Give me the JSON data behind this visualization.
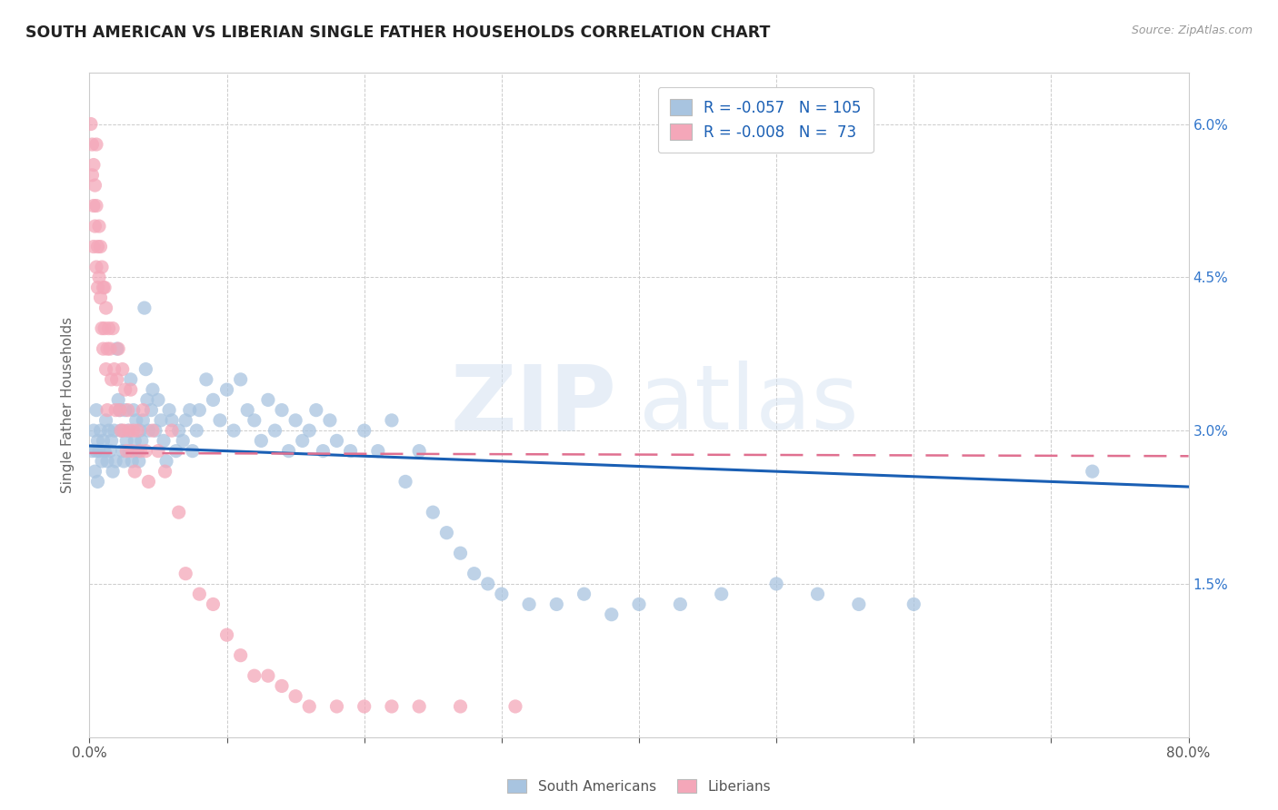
{
  "title": "SOUTH AMERICAN VS LIBERIAN SINGLE FATHER HOUSEHOLDS CORRELATION CHART",
  "source": "Source: ZipAtlas.com",
  "ylabel": "Single Father Households",
  "ytick_labels": [
    "1.5%",
    "3.0%",
    "4.5%",
    "6.0%"
  ],
  "ytick_values": [
    0.015,
    0.03,
    0.045,
    0.06
  ],
  "xlim": [
    0.0,
    0.8
  ],
  "ylim": [
    0.0,
    0.065
  ],
  "blue_R": "-0.057",
  "blue_N": "105",
  "pink_R": "-0.008",
  "pink_N": "73",
  "blue_color": "#a8c4e0",
  "pink_color": "#f4a7b9",
  "blue_line_color": "#1a5fb4",
  "pink_line_color": "#e07090",
  "legend_label_blue": "South Americans",
  "legend_label_pink": "Liberians",
  "background_color": "#ffffff",
  "grid_color": "#cccccc",
  "title_color": "#222222",
  "right_axis_color": "#3377cc",
  "watermark_text": "ZIPatlas",
  "blue_trend_x0": 0.0,
  "blue_trend_y0": 0.0285,
  "blue_trend_x1": 0.8,
  "blue_trend_y1": 0.0245,
  "pink_trend_x0": 0.0,
  "pink_trend_y0": 0.0278,
  "pink_trend_x1": 0.8,
  "pink_trend_y1": 0.0275,
  "blue_scatter_x": [
    0.002,
    0.003,
    0.004,
    0.005,
    0.005,
    0.006,
    0.006,
    0.007,
    0.008,
    0.009,
    0.01,
    0.011,
    0.012,
    0.013,
    0.014,
    0.015,
    0.016,
    0.017,
    0.018,
    0.019,
    0.02,
    0.021,
    0.022,
    0.023,
    0.024,
    0.025,
    0.026,
    0.027,
    0.028,
    0.029,
    0.03,
    0.031,
    0.032,
    0.033,
    0.034,
    0.035,
    0.036,
    0.037,
    0.038,
    0.039,
    0.04,
    0.041,
    0.042,
    0.043,
    0.045,
    0.046,
    0.048,
    0.05,
    0.052,
    0.054,
    0.056,
    0.058,
    0.06,
    0.063,
    0.065,
    0.068,
    0.07,
    0.073,
    0.075,
    0.078,
    0.08,
    0.085,
    0.09,
    0.095,
    0.1,
    0.105,
    0.11,
    0.115,
    0.12,
    0.125,
    0.13,
    0.135,
    0.14,
    0.145,
    0.15,
    0.155,
    0.16,
    0.165,
    0.17,
    0.175,
    0.18,
    0.19,
    0.2,
    0.21,
    0.22,
    0.23,
    0.24,
    0.25,
    0.26,
    0.27,
    0.28,
    0.29,
    0.3,
    0.32,
    0.34,
    0.36,
    0.38,
    0.4,
    0.43,
    0.46,
    0.5,
    0.53,
    0.56,
    0.6,
    0.73
  ],
  "blue_scatter_y": [
    0.028,
    0.03,
    0.026,
    0.028,
    0.032,
    0.025,
    0.029,
    0.028,
    0.03,
    0.027,
    0.029,
    0.028,
    0.031,
    0.027,
    0.03,
    0.028,
    0.029,
    0.026,
    0.03,
    0.027,
    0.038,
    0.033,
    0.032,
    0.03,
    0.028,
    0.027,
    0.032,
    0.029,
    0.03,
    0.028,
    0.035,
    0.027,
    0.032,
    0.029,
    0.031,
    0.028,
    0.027,
    0.03,
    0.029,
    0.031,
    0.042,
    0.036,
    0.033,
    0.03,
    0.032,
    0.034,
    0.03,
    0.033,
    0.031,
    0.029,
    0.027,
    0.032,
    0.031,
    0.028,
    0.03,
    0.029,
    0.031,
    0.032,
    0.028,
    0.03,
    0.032,
    0.035,
    0.033,
    0.031,
    0.034,
    0.03,
    0.035,
    0.032,
    0.031,
    0.029,
    0.033,
    0.03,
    0.032,
    0.028,
    0.031,
    0.029,
    0.03,
    0.032,
    0.028,
    0.031,
    0.029,
    0.028,
    0.03,
    0.028,
    0.031,
    0.025,
    0.028,
    0.022,
    0.02,
    0.018,
    0.016,
    0.015,
    0.014,
    0.013,
    0.013,
    0.014,
    0.012,
    0.013,
    0.013,
    0.014,
    0.015,
    0.014,
    0.013,
    0.013,
    0.026
  ],
  "pink_scatter_x": [
    0.001,
    0.002,
    0.002,
    0.003,
    0.003,
    0.003,
    0.004,
    0.004,
    0.005,
    0.005,
    0.005,
    0.006,
    0.006,
    0.007,
    0.007,
    0.008,
    0.008,
    0.009,
    0.009,
    0.01,
    0.01,
    0.011,
    0.011,
    0.012,
    0.012,
    0.013,
    0.013,
    0.014,
    0.015,
    0.016,
    0.017,
    0.018,
    0.019,
    0.02,
    0.021,
    0.022,
    0.023,
    0.024,
    0.025,
    0.026,
    0.027,
    0.028,
    0.029,
    0.03,
    0.031,
    0.032,
    0.033,
    0.035,
    0.037,
    0.039,
    0.041,
    0.043,
    0.046,
    0.05,
    0.055,
    0.06,
    0.065,
    0.07,
    0.08,
    0.09,
    0.1,
    0.11,
    0.12,
    0.13,
    0.14,
    0.15,
    0.16,
    0.18,
    0.2,
    0.22,
    0.24,
    0.27,
    0.31
  ],
  "pink_scatter_y": [
    0.06,
    0.058,
    0.055,
    0.056,
    0.052,
    0.048,
    0.054,
    0.05,
    0.058,
    0.052,
    0.046,
    0.048,
    0.044,
    0.05,
    0.045,
    0.048,
    0.043,
    0.046,
    0.04,
    0.044,
    0.038,
    0.044,
    0.04,
    0.036,
    0.042,
    0.038,
    0.032,
    0.04,
    0.038,
    0.035,
    0.04,
    0.036,
    0.032,
    0.035,
    0.038,
    0.032,
    0.03,
    0.036,
    0.03,
    0.034,
    0.028,
    0.032,
    0.03,
    0.034,
    0.028,
    0.03,
    0.026,
    0.03,
    0.028,
    0.032,
    0.028,
    0.025,
    0.03,
    0.028,
    0.026,
    0.03,
    0.022,
    0.016,
    0.014,
    0.013,
    0.01,
    0.008,
    0.006,
    0.006,
    0.005,
    0.004,
    0.003,
    0.003,
    0.003,
    0.003,
    0.003,
    0.003,
    0.003
  ]
}
